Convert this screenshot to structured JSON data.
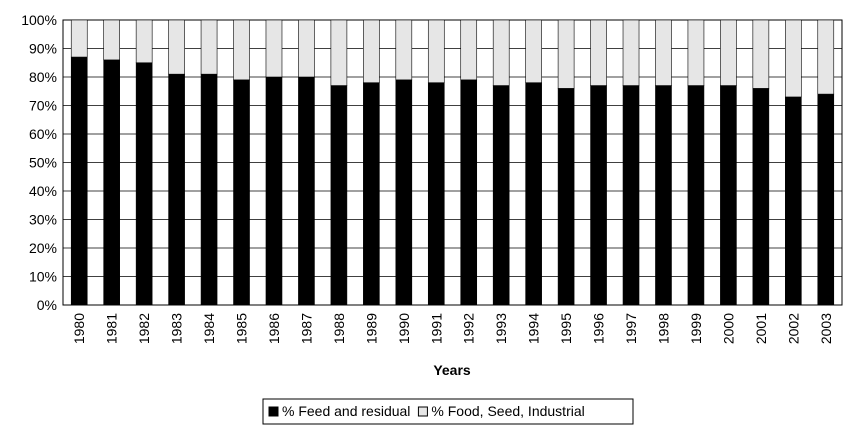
{
  "chart_data": {
    "type": "stacked_bar",
    "x_label": "Years",
    "categories": [
      "1980",
      "1981",
      "1982",
      "1983",
      "1984",
      "1985",
      "1986",
      "1987",
      "1988",
      "1989",
      "1990",
      "1991",
      "1992",
      "1993",
      "1994",
      "1995",
      "1996",
      "1997",
      "1998",
      "1999",
      "2000",
      "2001",
      "2002",
      "2003"
    ],
    "series": [
      {
        "name": "% Feed and residual",
        "color": "#000000",
        "values": [
          87,
          86,
          85,
          81,
          81,
          79,
          80,
          80,
          77,
          78,
          79,
          78,
          79,
          77,
          78,
          76,
          77,
          77,
          77,
          77,
          77,
          76,
          73,
          74
        ]
      },
      {
        "name": "% Food, Seed, Industrial",
        "color": "#e6e6e6",
        "values": [
          13,
          14,
          15,
          19,
          19,
          21,
          20,
          20,
          23,
          22,
          21,
          22,
          21,
          23,
          22,
          24,
          23,
          23,
          23,
          23,
          23,
          24,
          27,
          26
        ]
      }
    ],
    "ylim": [
      0,
      100
    ],
    "yticks": [
      {
        "value": 0,
        "label": "0%"
      },
      {
        "value": 10,
        "label": "10%"
      },
      {
        "value": 20,
        "label": "20%"
      },
      {
        "value": 30,
        "label": "30%"
      },
      {
        "value": 40,
        "label": "40%"
      },
      {
        "value": 50,
        "label": "50%"
      },
      {
        "value": 60,
        "label": "60%"
      },
      {
        "value": 70,
        "label": "70%"
      },
      {
        "value": 80,
        "label": "80%"
      },
      {
        "value": 90,
        "label": "90%"
      },
      {
        "value": 100,
        "label": "100%"
      }
    ],
    "grid": true,
    "legend": "bottom"
  }
}
